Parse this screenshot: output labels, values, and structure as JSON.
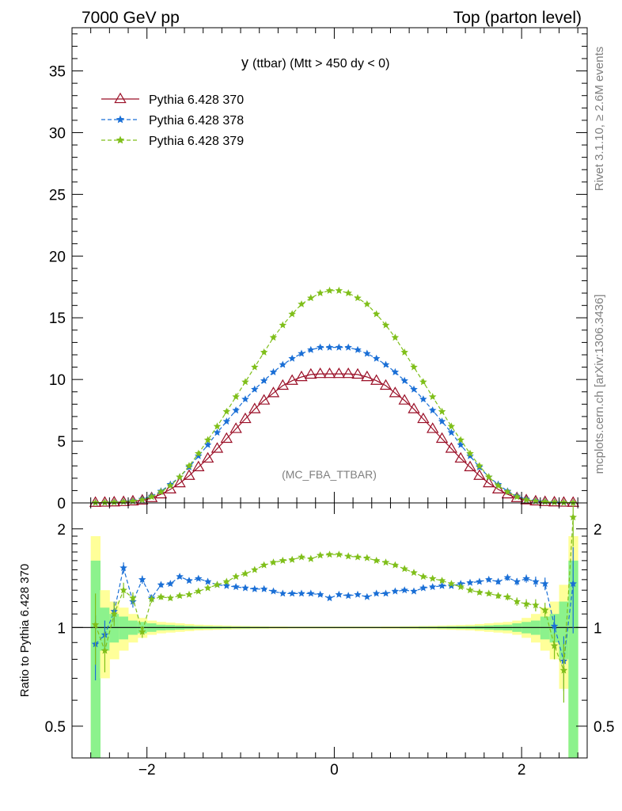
{
  "header": {
    "left": "7000 GeV pp",
    "right": "Top (parton level)"
  },
  "plot_title": {
    "main": "y",
    "rest": "(ttbar) (Mtt > 450 dy < 0)"
  },
  "side_labels": {
    "rivet": "Rivet 3.1.10, ≥ 2.6M events",
    "source": "mcplots.cern.ch [arXiv:1306.3436]"
  },
  "analysis_tag": "(MC_FBA_TTBAR)",
  "ratio_ylabel": "Ratio to Pythia 6.428 370",
  "colors": {
    "s370": "#9a0e26",
    "s378": "#1a6fd6",
    "s379": "#7fbf1a",
    "band_yellow": "#ffff99",
    "band_green": "#8cf28c"
  },
  "chart_data": [
    {
      "type": "line",
      "panel": "main",
      "xlim": [
        -2.8,
        2.7
      ],
      "ylim": [
        0,
        38.5
      ],
      "xticks": [
        -2,
        0,
        2
      ],
      "yticks": [
        0,
        5,
        10,
        15,
        20,
        25,
        30,
        35
      ],
      "legend_position": "top-left",
      "x": [
        -2.55,
        -2.45,
        -2.35,
        -2.25,
        -2.15,
        -2.05,
        -1.95,
        -1.85,
        -1.75,
        -1.65,
        -1.55,
        -1.45,
        -1.35,
        -1.25,
        -1.15,
        -1.05,
        -0.95,
        -0.85,
        -0.75,
        -0.65,
        -0.55,
        -0.45,
        -0.35,
        -0.25,
        -0.15,
        -0.05,
        0.05,
        0.15,
        0.25,
        0.35,
        0.45,
        0.55,
        0.65,
        0.75,
        0.85,
        0.95,
        1.05,
        1.15,
        1.25,
        1.35,
        1.45,
        1.55,
        1.65,
        1.75,
        1.85,
        1.95,
        2.05,
        2.15,
        2.25,
        2.35,
        2.45,
        2.55
      ],
      "series": [
        {
          "name": "Pythia 6.428 370",
          "marker": "open-triangle",
          "line": "solid",
          "values": [
            0.02,
            0.03,
            0.05,
            0.08,
            0.13,
            0.2,
            0.4,
            0.7,
            1.1,
            1.6,
            2.2,
            2.9,
            3.6,
            4.4,
            5.2,
            6.0,
            6.8,
            7.6,
            8.3,
            8.9,
            9.5,
            9.9,
            10.2,
            10.4,
            10.45,
            10.45,
            10.45,
            10.45,
            10.4,
            10.2,
            9.9,
            9.5,
            8.9,
            8.3,
            7.6,
            6.8,
            6.0,
            5.2,
            4.4,
            3.6,
            2.9,
            2.2,
            1.6,
            1.1,
            0.7,
            0.4,
            0.22,
            0.13,
            0.08,
            0.05,
            0.03,
            0.02
          ]
        },
        {
          "name": "Pythia 6.428 378",
          "marker": "star",
          "line": "dashed",
          "values": [
            0.02,
            0.03,
            0.06,
            0.11,
            0.17,
            0.3,
            0.55,
            0.95,
            1.5,
            2.1,
            2.9,
            3.8,
            4.7,
            5.7,
            6.6,
            7.5,
            8.4,
            9.2,
            9.9,
            10.6,
            11.2,
            11.7,
            12.1,
            12.4,
            12.6,
            12.6,
            12.6,
            12.6,
            12.4,
            12.1,
            11.7,
            11.2,
            10.6,
            9.9,
            9.2,
            8.4,
            7.5,
            6.6,
            5.7,
            4.7,
            3.8,
            2.9,
            2.1,
            1.5,
            0.95,
            0.55,
            0.3,
            0.17,
            0.11,
            0.06,
            0.03,
            0.02
          ]
        },
        {
          "name": "Pythia 6.428 379",
          "marker": "star",
          "line": "dashed",
          "values": [
            0.02,
            0.03,
            0.05,
            0.09,
            0.14,
            0.25,
            0.5,
            0.9,
            1.4,
            2.1,
            3.0,
            4.0,
            5.1,
            6.2,
            7.4,
            8.6,
            9.8,
            11.0,
            12.2,
            13.4,
            14.4,
            15.3,
            16.1,
            16.6,
            17.0,
            17.2,
            17.2,
            17.0,
            16.6,
            16.1,
            15.3,
            14.4,
            13.4,
            12.2,
            11.0,
            9.8,
            8.6,
            7.4,
            6.2,
            5.1,
            4.0,
            3.0,
            2.1,
            1.4,
            0.9,
            0.5,
            0.25,
            0.14,
            0.09,
            0.05,
            0.03,
            0.02
          ]
        }
      ]
    },
    {
      "type": "line",
      "panel": "ratio",
      "ylabel": "Ratio to Pythia 6.428 370",
      "log_y": true,
      "xlim": [
        -2.8,
        2.7
      ],
      "ylim": [
        0.4,
        2.4
      ],
      "xticks": [
        -2,
        0,
        2
      ],
      "yticks": [
        0.5,
        1,
        2
      ],
      "x": [
        -2.55,
        -2.45,
        -2.35,
        -2.25,
        -2.15,
        -2.05,
        -1.95,
        -1.85,
        -1.75,
        -1.65,
        -1.55,
        -1.45,
        -1.35,
        -1.25,
        -1.15,
        -1.05,
        -0.95,
        -0.85,
        -0.75,
        -0.65,
        -0.55,
        -0.45,
        -0.35,
        -0.25,
        -0.15,
        -0.05,
        0.05,
        0.15,
        0.25,
        0.35,
        0.45,
        0.55,
        0.65,
        0.75,
        0.85,
        0.95,
        1.05,
        1.15,
        1.25,
        1.35,
        1.45,
        1.55,
        1.65,
        1.75,
        1.85,
        1.95,
        2.05,
        2.15,
        2.25,
        2.35,
        2.45,
        2.55
      ],
      "band_yellow_halfwidth": [
        0.9,
        0.3,
        0.2,
        0.15,
        0.1,
        0.07,
        0.05,
        0.04,
        0.035,
        0.03,
        0.025,
        0.02,
        0.018,
        0.016,
        0.014,
        0.012,
        0.011,
        0.01,
        0.009,
        0.008,
        0.008,
        0.007,
        0.007,
        0.007,
        0.007,
        0.007,
        0.007,
        0.007,
        0.007,
        0.007,
        0.007,
        0.008,
        0.008,
        0.009,
        0.01,
        0.011,
        0.012,
        0.014,
        0.016,
        0.018,
        0.02,
        0.025,
        0.03,
        0.035,
        0.04,
        0.05,
        0.07,
        0.1,
        0.15,
        0.2,
        0.35,
        0.9
      ],
      "band_green_halfwidth": [
        0.6,
        0.15,
        0.1,
        0.08,
        0.05,
        0.04,
        0.03,
        0.02,
        0.018,
        0.015,
        0.012,
        0.01,
        0.009,
        0.008,
        0.007,
        0.006,
        0.006,
        0.005,
        0.005,
        0.004,
        0.004,
        0.004,
        0.004,
        0.004,
        0.004,
        0.004,
        0.004,
        0.004,
        0.004,
        0.004,
        0.004,
        0.004,
        0.004,
        0.005,
        0.005,
        0.006,
        0.006,
        0.007,
        0.008,
        0.009,
        0.01,
        0.012,
        0.015,
        0.018,
        0.02,
        0.03,
        0.04,
        0.05,
        0.08,
        0.1,
        0.2,
        0.6
      ],
      "series": [
        {
          "name": "Pythia 6.428 370",
          "values": [
            1,
            1,
            1,
            1,
            1,
            1,
            1,
            1,
            1,
            1,
            1,
            1,
            1,
            1,
            1,
            1,
            1,
            1,
            1,
            1,
            1,
            1,
            1,
            1,
            1,
            1,
            1,
            1,
            1,
            1,
            1,
            1,
            1,
            1,
            1,
            1,
            1,
            1,
            1,
            1,
            1,
            1,
            1,
            1,
            1,
            1,
            1,
            1,
            1,
            1,
            1,
            1
          ]
        },
        {
          "name": "Pythia 6.428 378",
          "values": [
            0.89,
            0.95,
            1.12,
            1.52,
            1.2,
            1.4,
            1.23,
            1.35,
            1.36,
            1.43,
            1.39,
            1.41,
            1.38,
            1.35,
            1.34,
            1.33,
            1.32,
            1.31,
            1.31,
            1.29,
            1.27,
            1.27,
            1.27,
            1.27,
            1.26,
            1.23,
            1.26,
            1.25,
            1.26,
            1.24,
            1.27,
            1.27,
            1.29,
            1.3,
            1.29,
            1.32,
            1.33,
            1.34,
            1.34,
            1.36,
            1.37,
            1.38,
            1.4,
            1.38,
            1.42,
            1.38,
            1.41,
            1.38,
            1.36,
            1.01,
            0.79,
            1.36
          ],
          "errors": [
            0.2,
            0.1,
            0.08,
            0.06,
            0.05,
            0.04,
            0.03,
            0.025,
            0.02,
            0.02,
            0.015,
            0.015,
            0.012,
            0.01,
            0.01,
            0.01,
            0.01,
            0.008,
            0.008,
            0.008,
            0.008,
            0.008,
            0.008,
            0.008,
            0.008,
            0.008,
            0.008,
            0.008,
            0.008,
            0.008,
            0.008,
            0.008,
            0.008,
            0.008,
            0.008,
            0.01,
            0.01,
            0.01,
            0.012,
            0.015,
            0.015,
            0.02,
            0.02,
            0.025,
            0.03,
            0.035,
            0.04,
            0.05,
            0.06,
            0.08,
            0.15,
            0.4
          ]
        },
        {
          "name": "Pythia 6.428 379",
          "values": [
            1.02,
            0.85,
            1.1,
            1.3,
            1.23,
            0.97,
            1.22,
            1.24,
            1.23,
            1.25,
            1.26,
            1.29,
            1.32,
            1.35,
            1.38,
            1.43,
            1.46,
            1.5,
            1.55,
            1.58,
            1.6,
            1.61,
            1.64,
            1.62,
            1.66,
            1.67,
            1.67,
            1.65,
            1.64,
            1.63,
            1.6,
            1.58,
            1.55,
            1.51,
            1.47,
            1.43,
            1.41,
            1.39,
            1.36,
            1.33,
            1.3,
            1.28,
            1.27,
            1.25,
            1.24,
            1.2,
            1.18,
            1.17,
            1.13,
            0.88,
            0.74,
            2.17
          ],
          "errors": [
            0.25,
            0.12,
            0.09,
            0.07,
            0.05,
            0.04,
            0.03,
            0.025,
            0.02,
            0.02,
            0.015,
            0.015,
            0.012,
            0.01,
            0.01,
            0.01,
            0.01,
            0.008,
            0.008,
            0.008,
            0.008,
            0.008,
            0.008,
            0.008,
            0.008,
            0.008,
            0.008,
            0.008,
            0.008,
            0.008,
            0.008,
            0.008,
            0.008,
            0.008,
            0.008,
            0.01,
            0.01,
            0.01,
            0.012,
            0.015,
            0.015,
            0.02,
            0.02,
            0.025,
            0.03,
            0.035,
            0.04,
            0.05,
            0.06,
            0.08,
            0.15,
            0.4
          ]
        }
      ]
    }
  ]
}
